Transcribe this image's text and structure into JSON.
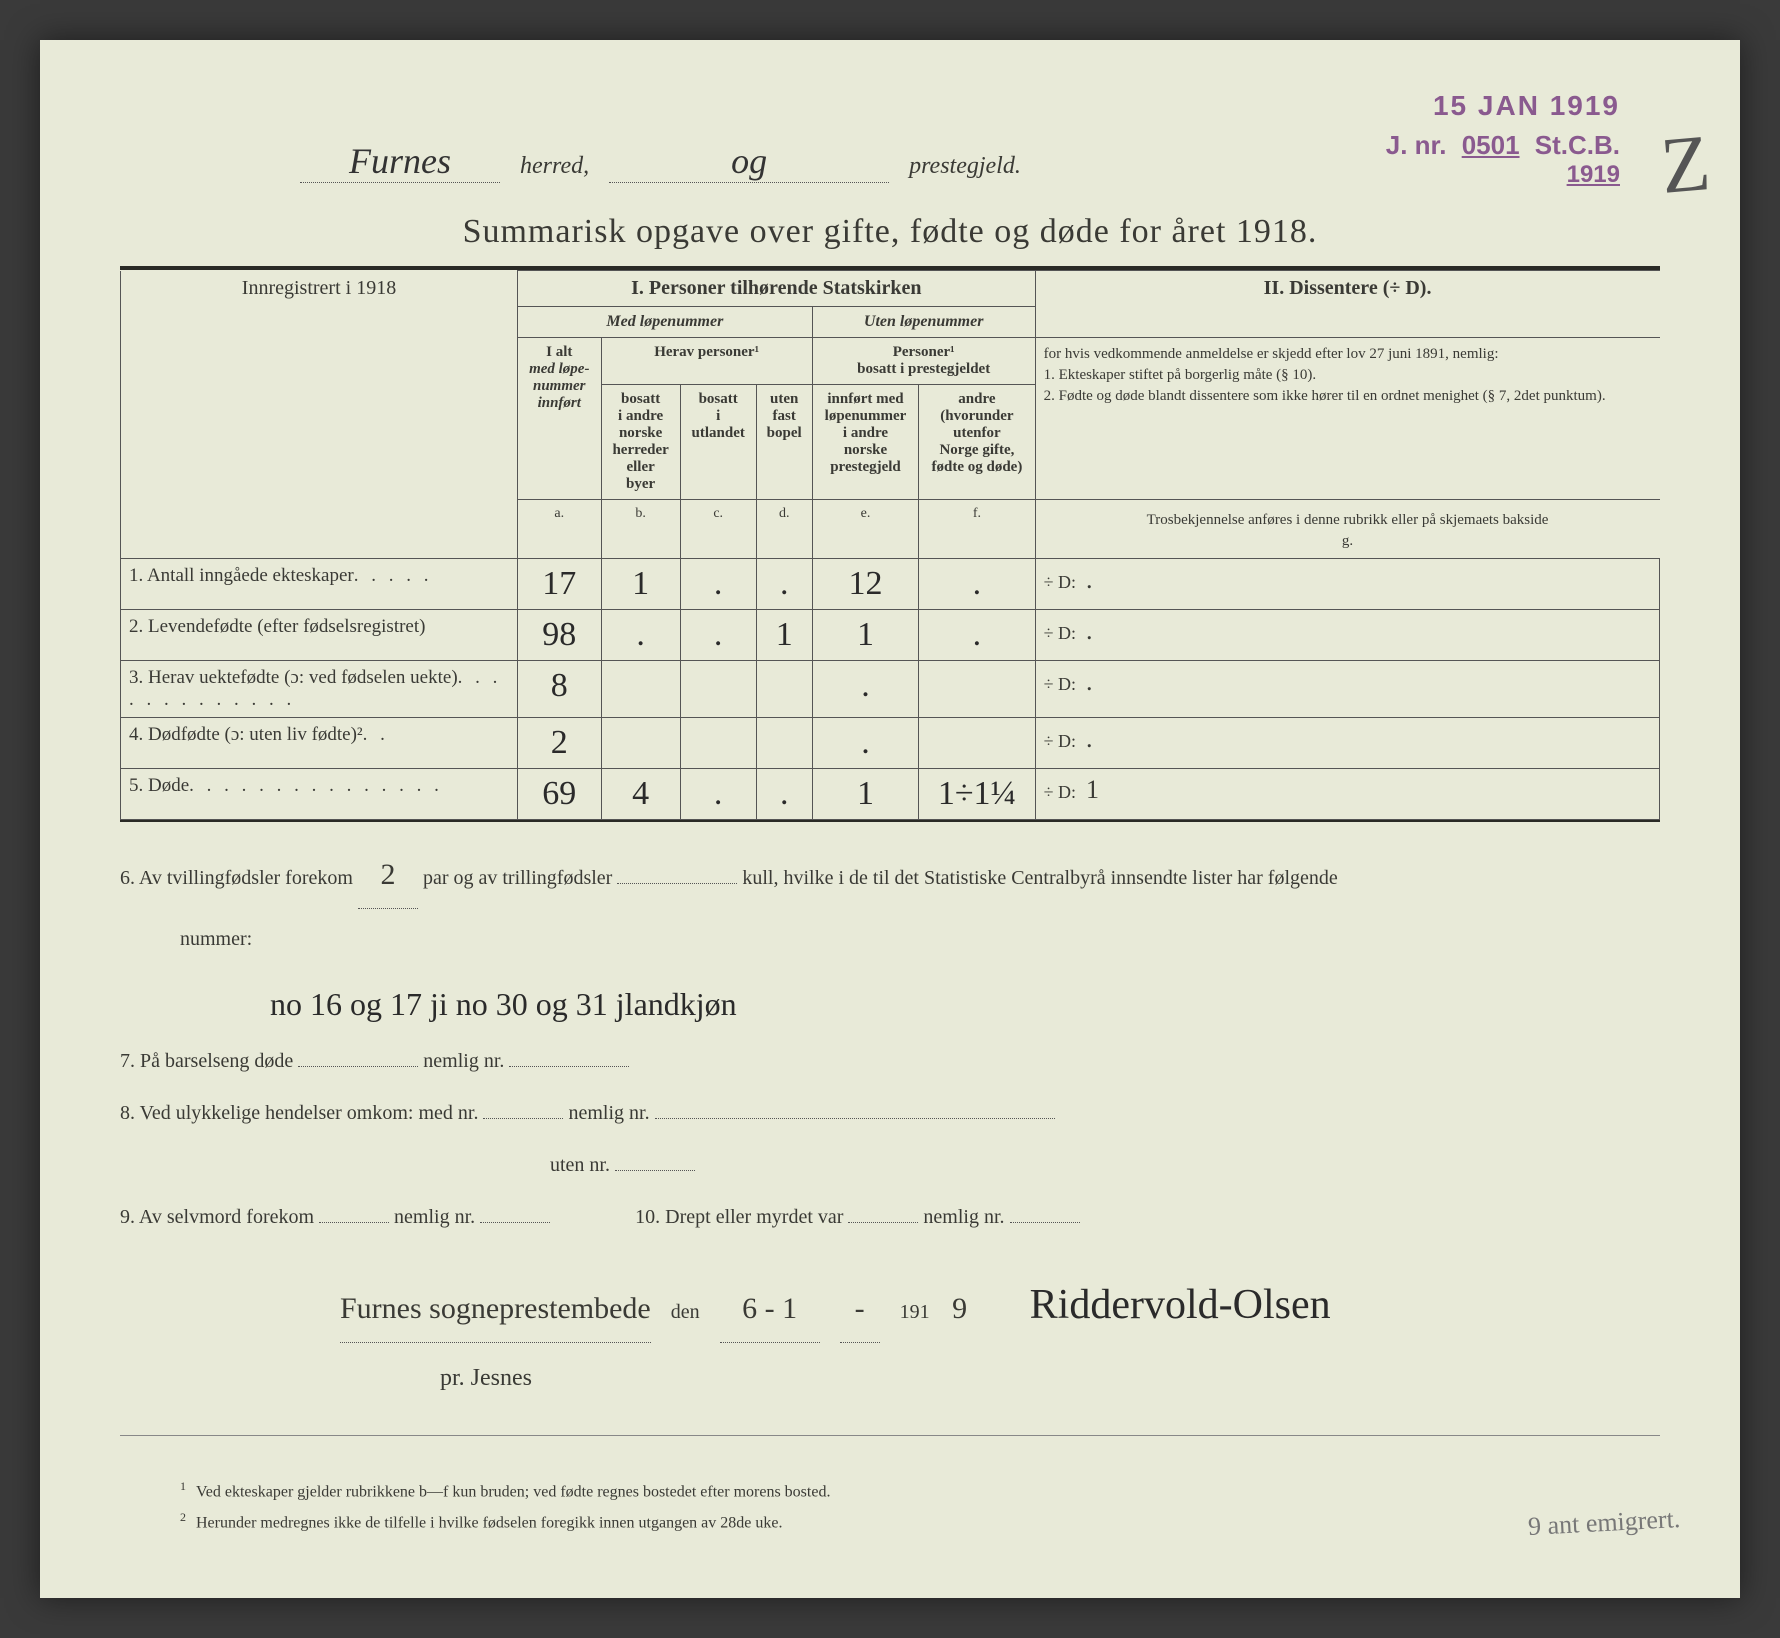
{
  "stamps": {
    "date": "15 JAN 1919",
    "jnr_prefix": "J. nr.",
    "jnr_num": "0501",
    "jnr_suffix": "St.C.B.",
    "year": "1919"
  },
  "corner_mark": "Z",
  "header": {
    "herred_value": "Furnes",
    "herred_label": "herred,",
    "og_value": "og",
    "prestegjeld_label": "prestegjeld."
  },
  "title": "Summarisk opgave over gifte, fødte og døde for året 1918.",
  "table": {
    "innregistrert": "Innregistrert i 1918",
    "section1_title": "I.  Personer tilhørende Statskirken",
    "section2_title": "II.  Dissentere (÷ D).",
    "med_lope": "Med løpenummer",
    "uten_lope": "Uten løpenummer",
    "ialt": "I alt",
    "ialt_sub": "med løpe-\nnummer\ninnført",
    "herav_personer": "Herav personer¹",
    "personer_bosatt": "Personer¹\nbosatt i prestegjeldet",
    "col_b": "bosatt\ni andre\nnorske\nherreder\neller\nbyer",
    "col_c": "bosatt\ni\nutlandet",
    "col_d": "uten\nfast\nbopel",
    "col_e": "innført med\nløpenummer\ni andre\nnorske\nprestegjeld",
    "col_f": "andre\n(hvorunder\nutenfor\nNorge gifte,\nfødte og døde)",
    "letters": {
      "a": "a.",
      "b": "b.",
      "c": "c.",
      "d": "d.",
      "e": "e.",
      "f": "f.",
      "g": "g."
    },
    "dissenter_text": "for hvis vedkommende anmeldelse er skjedd efter lov 27 juni 1891, nemlig:",
    "dissenter_1": "1. Ekteskaper stiftet på borgerlig måte (§ 10).",
    "dissenter_2": "2. Fødte og døde blandt dissentere som ikke hører til en ordnet menighet (§ 7, 2det punktum).",
    "dissenter_note": "Trosbekjennelse anføres i denne rubrikk eller på skjemaets bakside",
    "rows": [
      {
        "num": "1.",
        "label": "Antall inngåede ekteskaper",
        "dots": ". . . . .",
        "a": "17",
        "b": "1",
        "c": ".",
        "d": ".",
        "e": "12",
        "f": ".",
        "g_prefix": "÷ D:",
        "g": "."
      },
      {
        "num": "2.",
        "label": "Levendefødte (efter fødselsregistret)",
        "dots": "",
        "a": "98",
        "b": ".",
        "c": ".",
        "d": "1",
        "e": "1",
        "f": ".",
        "g_prefix": "÷ D:",
        "g": "."
      },
      {
        "num": "3.",
        "label": "Herav uektefødte (ɔ: ved fødselen uekte)",
        "dots": ". . . . . . . . . . . . .",
        "a": "8",
        "b": "",
        "c": "",
        "d": "",
        "e": ".",
        "f": "",
        "g_prefix": "÷ D:",
        "g": "."
      },
      {
        "num": "4.",
        "label": "Dødfødte (ɔ: uten liv fødte)²",
        "dots": ". .",
        "a": "2",
        "b": "",
        "c": "",
        "d": "",
        "e": ".",
        "f": "",
        "g_prefix": "÷ D:",
        "g": "."
      },
      {
        "num": "5.",
        "label": "Døde",
        "dots": ". . . . . . . . . . . . . . .",
        "a": "69",
        "b": "4",
        "c": ".",
        "d": ".",
        "e": "1",
        "f": "1÷1¼",
        "g_prefix": "÷ D:",
        "g": "1"
      }
    ]
  },
  "notes": {
    "line6_a": "6.  Av tvillingfødsler forekom",
    "line6_val": "2",
    "line6_b": "par og av trillingfødsler",
    "line6_c": "kull, hvilke i de til det Statistiske Centralbyrå innsendte lister har følgende",
    "line6_d": "nummer:",
    "line6_hw": "no 16 og 17 ji   no 30 og 31    jlandkjøn",
    "line7": "7.  På barselseng døde",
    "line7_b": "nemlig nr.",
    "line8": "8.  Ved ulykkelige hendelser omkom:  med nr.",
    "line8_b": "nemlig nr.",
    "line8_c": "uten nr.",
    "line9": "9.  Av selvmord forekom",
    "line9_b": "nemlig nr.",
    "line10": "10.  Drept eller myrdet var",
    "line10_b": "nemlig nr."
  },
  "signature": {
    "place": "Furnes sogneprestembede",
    "sub": "pr. Jesnes",
    "den": "den",
    "date_d": "6 - 1",
    "date_dash": "-",
    "date_y_prefix": "191",
    "date_y": "9",
    "name": "Riddervold-Olsen"
  },
  "footnotes": {
    "f1": "Ved ekteskaper gjelder rubrikkene b—f kun bruden; ved fødte regnes bostedet efter morens bosted.",
    "f2": "Herunder medregnes ikke de tilfelle i hvilke fødselen foregikk innen utgangen av 28de uke."
  },
  "margin_note": "9 ant emigrert."
}
